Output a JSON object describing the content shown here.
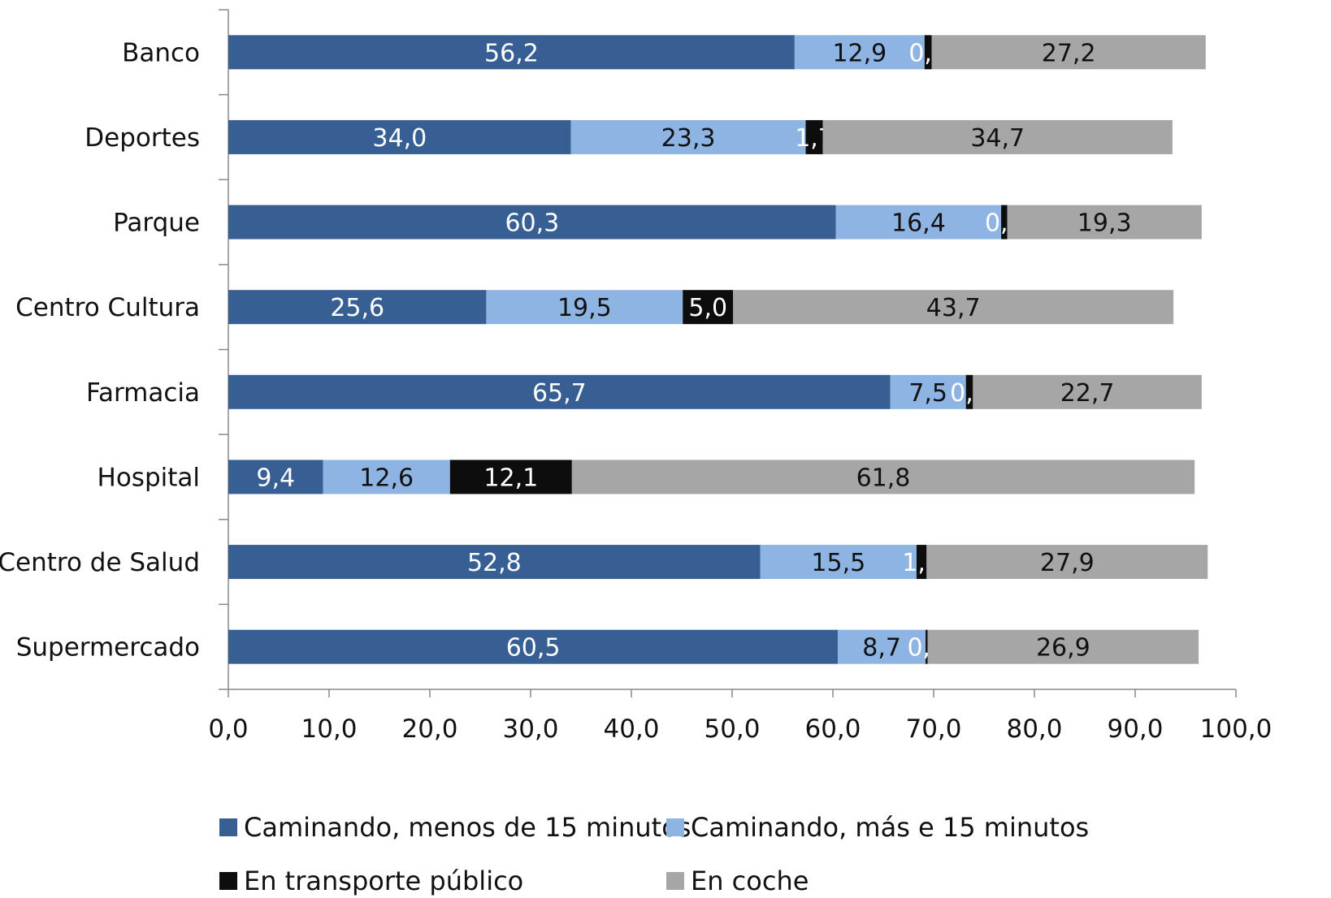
{
  "chart_data": {
    "type": "bar",
    "orientation": "horizontal",
    "stacked": true,
    "categories": [
      "Banco",
      "Deportes",
      "Parque",
      "Centro Cultura",
      "Farmacia",
      "Hospital",
      "Centro de Salud",
      "Supermercado"
    ],
    "series": [
      {
        "name": "Caminando, menos de 15 minutos",
        "color": "#375f93",
        "values": [
          56.2,
          34.0,
          60.3,
          25.6,
          65.7,
          9.4,
          52.8,
          60.5
        ],
        "labels": [
          "56,2",
          "34,0",
          "60,3",
          "25,6",
          "65,7",
          "9,4",
          "52,8",
          "60,5"
        ]
      },
      {
        "name": "Caminando, más e 15 minutos",
        "color": "#8eb4e3",
        "values": [
          12.9,
          23.3,
          16.4,
          19.5,
          7.5,
          12.6,
          15.5,
          8.7
        ],
        "labels": [
          "12,9",
          "23,3",
          "16,4",
          "19,5",
          "7,5",
          "12,6",
          "15,5",
          "8,7"
        ]
      },
      {
        "name": "En transporte público",
        "color": "#0d0d0d",
        "values": [
          0.7,
          1.7,
          0.6,
          5.0,
          0.7,
          12.1,
          1.0,
          0.2
        ],
        "labels": [
          "0,7",
          "1,7",
          "0,6",
          "5,0",
          "0,7",
          "12,1",
          "1,0",
          "0,2"
        ]
      },
      {
        "name": "En coche",
        "color": "#a6a6a6",
        "values": [
          27.2,
          34.7,
          19.3,
          43.7,
          22.7,
          61.8,
          27.9,
          26.9
        ],
        "labels": [
          "27,2",
          "34,7",
          "19,3",
          "43,7",
          "22,7",
          "61,8",
          "27,9",
          "26,9"
        ]
      }
    ],
    "xlim": [
      0,
      100
    ],
    "xticks": [
      "0,0",
      "10,0",
      "20,0",
      "30,0",
      "40,0",
      "50,0",
      "60,0",
      "70,0",
      "80,0",
      "90,0",
      "100,0"
    ],
    "label_colors": [
      "#ffffff",
      "#111111",
      "#ffffff",
      "#111111"
    ],
    "grid": false,
    "legend_position": "bottom",
    "title": "",
    "xlabel": "",
    "ylabel": ""
  }
}
